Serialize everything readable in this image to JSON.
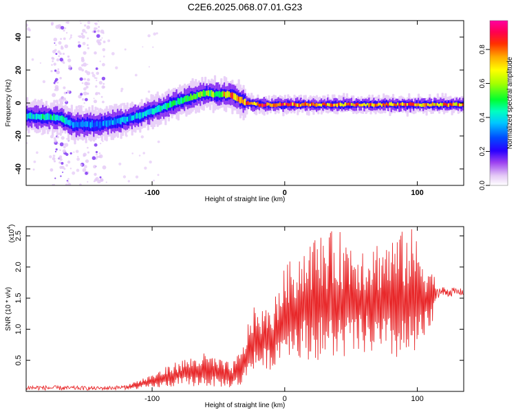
{
  "title": "C2E6.2025.068.07.01.G23",
  "chart_data": [
    {
      "type": "heatmap",
      "xlabel": "Height of straight line (km)",
      "ylabel": "Frequency (Hz)",
      "xlim": [
        -195,
        135
      ],
      "ylim": [
        -50,
        50
      ],
      "xticks": [
        -100,
        0,
        100
      ],
      "yticks": [
        40,
        20,
        0,
        -20,
        -40
      ],
      "colorbar": {
        "label": "Normalized spectral amplitude",
        "range": [
          0,
          0.97
        ],
        "ticks": [
          0.0,
          0.2,
          0.4,
          0.6,
          0.8
        ]
      },
      "ridge": [
        {
          "x": -195,
          "f": -8,
          "amp": 0.45
        },
        {
          "x": -170,
          "f": -9,
          "amp": 0.5
        },
        {
          "x": -160,
          "f": -13,
          "amp": 0.35
        },
        {
          "x": -140,
          "f": -13,
          "amp": 0.35
        },
        {
          "x": -120,
          "f": -10,
          "amp": 0.4
        },
        {
          "x": -100,
          "f": -5,
          "amp": 0.45
        },
        {
          "x": -80,
          "f": 1,
          "amp": 0.5
        },
        {
          "x": -60,
          "f": 6,
          "amp": 0.6
        },
        {
          "x": -50,
          "f": 5,
          "amp": 0.65
        },
        {
          "x": -40,
          "f": 5,
          "amp": 0.9
        },
        {
          "x": -30,
          "f": 0,
          "amp": 0.85
        },
        {
          "x": -20,
          "f": -1,
          "amp": 0.9
        },
        {
          "x": 0,
          "f": -1,
          "amp": 0.9
        },
        {
          "x": 50,
          "f": -1,
          "amp": 0.85
        },
        {
          "x": 100,
          "f": -1,
          "amp": 0.85
        },
        {
          "x": 135,
          "f": -1,
          "amp": 0.8
        }
      ]
    },
    {
      "type": "line",
      "xlabel": "Height of straight line (km)",
      "ylabel": "SNR (10 * v/v)",
      "multiplier_label": "(x10",
      "multiplier_exp": "4",
      "multiplier_close": ")",
      "xlim": [
        -195,
        135
      ],
      "ylim": [
        0,
        2.65
      ],
      "xticks": [
        -100,
        0,
        100
      ],
      "yticks": [
        0.5,
        1.0,
        1.5,
        2.0,
        2.5
      ],
      "color": "#e8282a",
      "envelope": [
        {
          "x": -195,
          "base": 0.02,
          "peak": 0.1
        },
        {
          "x": -140,
          "base": 0.02,
          "peak": 0.08
        },
        {
          "x": -120,
          "base": 0.03,
          "peak": 0.1
        },
        {
          "x": -100,
          "base": 0.05,
          "peak": 0.28
        },
        {
          "x": -80,
          "base": 0.08,
          "peak": 0.5
        },
        {
          "x": -60,
          "base": 0.08,
          "peak": 0.62
        },
        {
          "x": -40,
          "base": 0.06,
          "peak": 0.45
        },
        {
          "x": -32,
          "base": 0.08,
          "peak": 0.7
        },
        {
          "x": -25,
          "base": 0.35,
          "peak": 1.35
        },
        {
          "x": -10,
          "base": 0.35,
          "peak": 1.35
        },
        {
          "x": 0,
          "base": 0.6,
          "peak": 2.0
        },
        {
          "x": 20,
          "base": 0.5,
          "peak": 2.5
        },
        {
          "x": 40,
          "base": 0.5,
          "peak": 2.6
        },
        {
          "x": 60,
          "base": 0.6,
          "peak": 2.4
        },
        {
          "x": 80,
          "base": 0.5,
          "peak": 2.5
        },
        {
          "x": 95,
          "base": 0.45,
          "peak": 2.65
        },
        {
          "x": 110,
          "base": 0.9,
          "peak": 2.1
        },
        {
          "x": 115,
          "base": 1.5,
          "peak": 1.7
        },
        {
          "x": 135,
          "base": 1.55,
          "peak": 1.65
        }
      ]
    }
  ]
}
